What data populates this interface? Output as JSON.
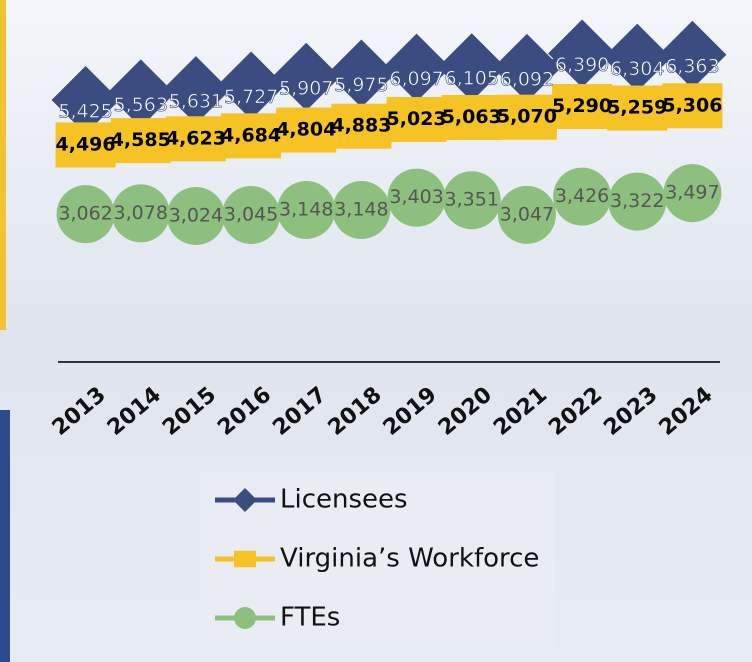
{
  "chart_data": {
    "type": "line",
    "categories": [
      "2013",
      "2014",
      "2015",
      "2016",
      "2017",
      "2018",
      "2019",
      "2020",
      "2021",
      "2022",
      "2023",
      "2024"
    ],
    "series": [
      {
        "name": "Licensees",
        "color": "#3b4d80",
        "marker": "diamond",
        "values": [
          5425,
          5563,
          5631,
          5727,
          5907,
          5975,
          6097,
          6105,
          6092,
          6390,
          6304,
          6363
        ],
        "value_labels": [
          "5,425",
          "5,563",
          "5,631",
          "5,727",
          "5,907",
          "5,975",
          "6,097",
          "6,105",
          "6,092",
          "6,390",
          "6,304",
          "6,363"
        ]
      },
      {
        "name": "Virginia’s Workforce",
        "color": "#f5c324",
        "marker": "square",
        "values": [
          4496,
          4585,
          4623,
          4684,
          4804,
          4883,
          5023,
          5063,
          5070,
          5290,
          5259,
          5306
        ],
        "value_labels": [
          "4,496",
          "4,585",
          "4,623",
          "4,684",
          "4,804",
          "4,883",
          "5,023",
          "5,063",
          "5,070",
          "5,290",
          "5,259",
          "5,306"
        ]
      },
      {
        "name": "FTEs",
        "color": "#8dc07f",
        "marker": "circle",
        "values": [
          3062,
          3078,
          3024,
          3045,
          3148,
          3148,
          3403,
          3351,
          3047,
          3426,
          3322,
          3497
        ],
        "value_labels": [
          "3,062",
          "3,078",
          "3,024",
          "3,045",
          "3,148",
          "3,148",
          "3,403",
          "3,351",
          "3,047",
          "3,426",
          "3,322",
          "3,497"
        ]
      }
    ],
    "ylim": [
      0,
      7000
    ],
    "legend": "bottom"
  }
}
